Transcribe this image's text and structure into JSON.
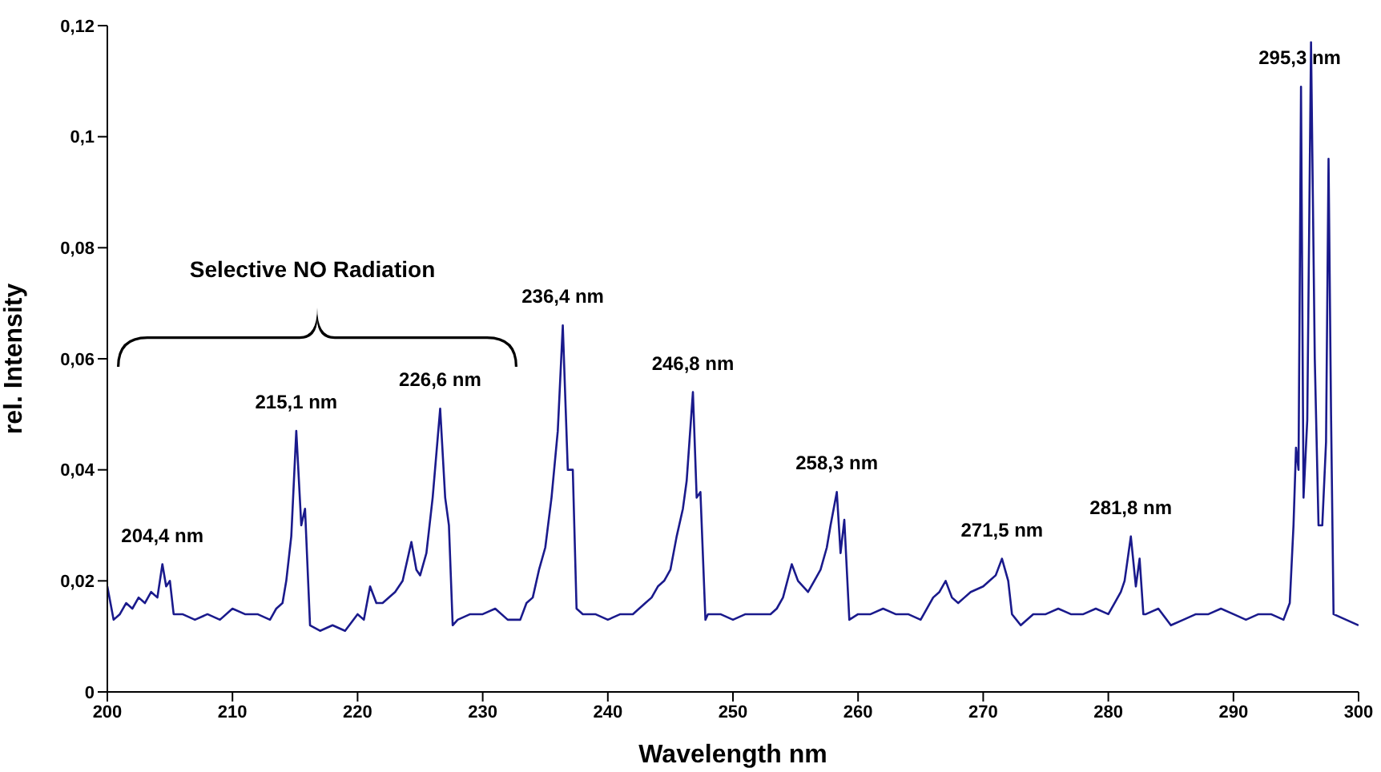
{
  "chart_data": {
    "type": "line",
    "xlabel": "Wavelength nm",
    "ylabel": "rel. Intensity",
    "x": [
      200,
      200.5,
      201,
      201.5,
      202,
      202.5,
      203,
      203.5,
      204,
      204.4,
      204.7,
      205,
      205.3,
      206,
      207,
      208,
      209,
      210,
      211,
      212,
      213,
      213.5,
      214,
      214.3,
      214.7,
      215.1,
      215.5,
      215.8,
      216.2,
      217,
      218,
      219,
      220,
      220.5,
      221,
      221.5,
      222,
      223,
      223.6,
      224.3,
      224.7,
      225,
      225.5,
      226,
      226.6,
      227,
      227.3,
      227.6,
      228,
      229,
      230,
      231,
      232,
      233,
      233.5,
      234,
      234.5,
      235,
      235.5,
      236,
      236.4,
      236.8,
      237.2,
      237.5,
      238,
      239,
      240,
      241,
      242,
      243,
      243.5,
      244,
      244.5,
      245,
      245.5,
      246,
      246.3,
      246.8,
      247.1,
      247.4,
      247.8,
      248,
      249,
      250,
      251,
      252,
      253,
      253.5,
      254,
      254.7,
      255.2,
      256,
      256.5,
      257,
      257.5,
      257.8,
      258.3,
      258.6,
      258.9,
      259.3,
      260,
      261,
      262,
      263,
      264,
      265,
      266,
      266.5,
      267,
      267.5,
      268,
      268.5,
      269,
      270,
      270.5,
      271,
      271.5,
      272,
      272.3,
      273,
      274,
      275,
      276,
      277,
      278,
      279,
      280,
      280.5,
      281,
      281.3,
      281.8,
      282.2,
      282.5,
      282.8,
      283,
      284,
      285,
      286,
      287,
      288,
      289,
      290,
      291,
      292,
      293,
      294,
      294.5,
      294.8,
      295,
      295.2,
      295.4,
      295.6,
      295.9,
      296.2,
      296.5,
      296.8,
      297.1,
      297.4,
      297.6,
      297.8,
      298,
      299,
      300
    ],
    "series": [
      {
        "color": "#1a1a8c",
        "values": [
          0.019,
          0.013,
          0.014,
          0.016,
          0.015,
          0.017,
          0.016,
          0.018,
          0.017,
          0.023,
          0.019,
          0.02,
          0.014,
          0.014,
          0.013,
          0.014,
          0.013,
          0.015,
          0.014,
          0.014,
          0.013,
          0.015,
          0.016,
          0.02,
          0.028,
          0.047,
          0.03,
          0.033,
          0.012,
          0.011,
          0.012,
          0.011,
          0.014,
          0.013,
          0.019,
          0.016,
          0.016,
          0.018,
          0.02,
          0.027,
          0.022,
          0.021,
          0.025,
          0.035,
          0.051,
          0.035,
          0.03,
          0.012,
          0.013,
          0.014,
          0.014,
          0.015,
          0.013,
          0.013,
          0.016,
          0.017,
          0.022,
          0.026,
          0.035,
          0.047,
          0.066,
          0.04,
          0.04,
          0.015,
          0.014,
          0.014,
          0.013,
          0.014,
          0.014,
          0.016,
          0.017,
          0.019,
          0.02,
          0.022,
          0.028,
          0.033,
          0.038,
          0.054,
          0.035,
          0.036,
          0.013,
          0.014,
          0.014,
          0.013,
          0.014,
          0.014,
          0.014,
          0.015,
          0.017,
          0.023,
          0.02,
          0.018,
          0.02,
          0.022,
          0.026,
          0.03,
          0.036,
          0.025,
          0.031,
          0.013,
          0.014,
          0.014,
          0.015,
          0.014,
          0.014,
          0.013,
          0.017,
          0.018,
          0.02,
          0.017,
          0.016,
          0.017,
          0.018,
          0.019,
          0.02,
          0.021,
          0.024,
          0.02,
          0.014,
          0.012,
          0.014,
          0.014,
          0.015,
          0.014,
          0.014,
          0.015,
          0.014,
          0.016,
          0.018,
          0.02,
          0.028,
          0.019,
          0.024,
          0.014,
          0.014,
          0.015,
          0.012,
          0.013,
          0.014,
          0.014,
          0.015,
          0.014,
          0.013,
          0.014,
          0.014,
          0.013,
          0.016,
          0.03,
          0.044,
          0.04,
          0.109,
          0.035,
          0.049,
          0.117,
          0.06,
          0.03,
          0.03,
          0.045,
          0.096,
          0.05,
          0.014,
          0.013,
          0.012
        ]
      }
    ],
    "xlim": [
      200,
      300
    ],
    "xticks": [
      200,
      210,
      220,
      230,
      240,
      250,
      260,
      270,
      280,
      290,
      300
    ],
    "ylim": [
      0,
      0.12
    ],
    "yticks": [
      0,
      {
        "value": 0.02,
        "label": "0,02"
      },
      {
        "value": 0.04,
        "label": "0,04"
      },
      {
        "value": 0.06,
        "label": "0,06"
      },
      {
        "value": 0.08,
        "label": "0,08"
      },
      {
        "value": 0.1,
        "label": "0,1"
      },
      {
        "value": 0.12,
        "label": "0,12"
      }
    ],
    "marker": "none",
    "line_style": "solid",
    "grid": false,
    "legend": false,
    "annotations": [
      "Selective NO Radiation",
      {
        "text": "204,4 nm",
        "x": 204.4,
        "y": 0.023
      },
      {
        "text": "215,1 nm",
        "x": 215.1,
        "y": 0.047
      },
      {
        "text": "226,6 nm",
        "x": 226.6,
        "y": 0.051
      },
      {
        "text": "236,4 nm",
        "x": 236.4,
        "y": 0.066
      },
      {
        "text": "246,8 nm",
        "x": 246.8,
        "y": 0.054
      },
      {
        "text": "258,3 nm",
        "x": 258.3,
        "y": 0.036
      },
      {
        "text": "271,5 nm",
        "x": 271.5,
        "y": 0.024
      },
      {
        "text": "281,8 nm",
        "x": 281.8,
        "y": 0.028
      },
      {
        "text": "295,3 nm",
        "x": 295.3,
        "y": 0.109
      }
    ]
  }
}
